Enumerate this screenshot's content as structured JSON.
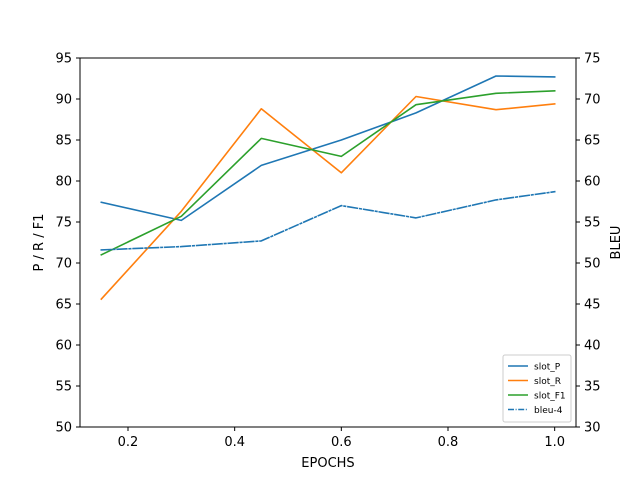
{
  "chart_data": {
    "type": "line",
    "title": "",
    "xlabel": "EPOCHS",
    "ylabel_left": "P / R / F1",
    "ylabel_right": "BLEU",
    "xlim": [
      0.11,
      1.04
    ],
    "ylim_left": [
      50,
      95
    ],
    "ylim_right": [
      30,
      75
    ],
    "x_ticks": [
      0.2,
      0.4,
      0.6,
      0.8,
      1.0
    ],
    "x_tick_labels": [
      "0.2",
      "0.4",
      "0.6",
      "0.8",
      "1.0"
    ],
    "y_left_ticks": [
      50,
      55,
      60,
      65,
      70,
      75,
      80,
      85,
      90,
      95
    ],
    "y_right_ticks": [
      30,
      35,
      40,
      45,
      50,
      55,
      60,
      65,
      70,
      75
    ],
    "grid": false,
    "legend_position": "lower-right",
    "x": [
      0.15,
      0.3,
      0.45,
      0.6,
      0.74,
      0.89,
      1.0
    ],
    "series": [
      {
        "name": "slot_P",
        "axis": "left",
        "color": "#1f77b4",
        "linestyle": "solid",
        "values": [
          77.4,
          75.2,
          81.9,
          85.0,
          88.3,
          92.8,
          92.7
        ]
      },
      {
        "name": "slot_R",
        "axis": "left",
        "color": "#ff7f0e",
        "linestyle": "solid",
        "values": [
          65.6,
          76.3,
          88.8,
          81.0,
          90.3,
          88.7,
          89.4
        ]
      },
      {
        "name": "slot_F1",
        "axis": "left",
        "color": "#2ca02c",
        "linestyle": "solid",
        "values": [
          71.0,
          75.7,
          85.2,
          83.0,
          89.3,
          90.7,
          91.0
        ]
      },
      {
        "name": "bleu-4",
        "axis": "right",
        "color": "#1f77b4",
        "linestyle": "dashdot",
        "values": [
          51.6,
          52.0,
          52.7,
          57.0,
          55.5,
          57.7,
          58.7
        ]
      }
    ]
  }
}
